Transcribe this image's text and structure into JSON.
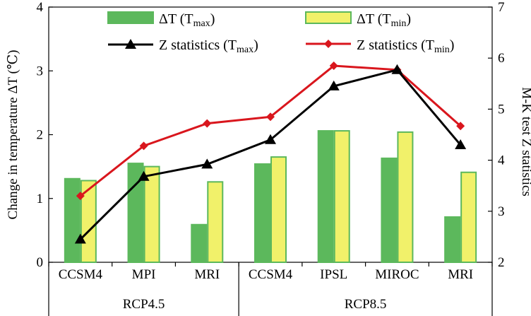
{
  "chart_data": {
    "type": "bar+line",
    "categories": [
      "CCSM4",
      "MPI",
      "MRI",
      "CCSM4",
      "IPSL",
      "MIROC",
      "MRI"
    ],
    "groups": [
      {
        "label": "RCP4.5",
        "span": [
          0,
          2
        ]
      },
      {
        "label": "RCP8.5",
        "span": [
          3,
          6
        ]
      }
    ],
    "ylabel_left": "Change in temperature ΔT (℃)",
    "ylabel_right": "M-K test Z statistics",
    "ylim_left": [
      0,
      4
    ],
    "ylim_right": [
      2,
      7
    ],
    "yticks_left": [
      "0",
      "1",
      "2",
      "3",
      "4"
    ],
    "yticks_right": [
      "2",
      "3",
      "4",
      "5",
      "6",
      "7"
    ],
    "legend_placement": "top",
    "series": [
      {
        "name": "ΔT (Tmax)",
        "label_main": "ΔT (T",
        "label_sub": "max",
        "label_end": ")",
        "type": "bar",
        "axis": "left",
        "color": "#5cb85c",
        "edge": "#5cb85c",
        "values": [
          1.31,
          1.55,
          0.59,
          1.54,
          2.06,
          1.63,
          0.71
        ]
      },
      {
        "name": "ΔT (Tmin)",
        "label_main": "ΔT (T",
        "label_sub": "min",
        "label_end": ")",
        "type": "bar",
        "axis": "left",
        "color": "#f1f16a",
        "edge": "#5cb85c",
        "values": [
          1.28,
          1.5,
          1.26,
          1.65,
          2.06,
          2.04,
          1.41
        ]
      },
      {
        "name": "Z statistics (Tmax)",
        "label_main": "Z statistics (T",
        "label_sub": "max",
        "label_end": ")",
        "type": "line",
        "axis": "right",
        "color": "#000000",
        "marker": "triangle",
        "values": [
          2.45,
          3.68,
          3.92,
          4.4,
          5.45,
          5.77,
          4.3
        ]
      },
      {
        "name": "Z statistics (Tmin)",
        "label_main": "Z statistics (T",
        "label_sub": "min",
        "label_end": ")",
        "type": "line",
        "axis": "right",
        "color": "#d9161d",
        "marker": "diamond",
        "values": [
          3.3,
          4.28,
          4.72,
          4.85,
          5.85,
          5.77,
          4.67
        ]
      }
    ]
  }
}
